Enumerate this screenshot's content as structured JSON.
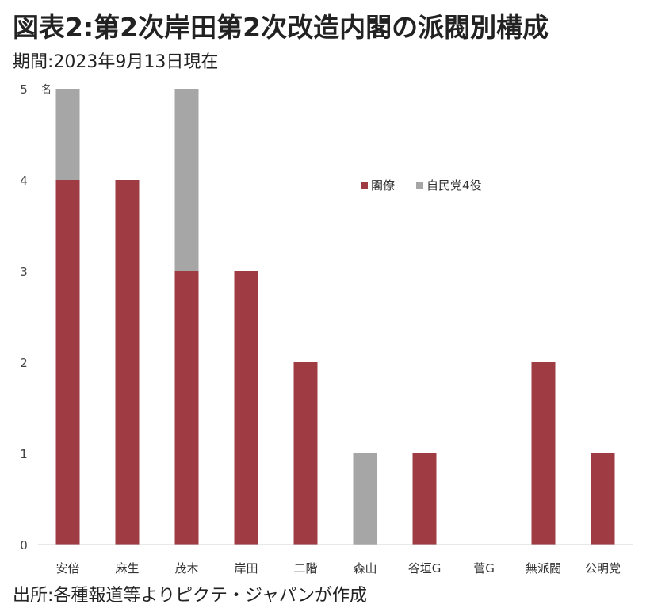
{
  "title": "図表2:第2次岸田第2次改造内閣の派閥別構成",
  "subtitle": "期間:2023年9月13日現在",
  "source": "出所:各種報道等よりピクテ・ジャパンが作成",
  "chart_data": {
    "type": "bar",
    "stacked": true,
    "categories": [
      "安倍",
      "麻生",
      "茂木",
      "岸田",
      "二階",
      "森山",
      "谷垣G",
      "菅G",
      "無派閥",
      "公明党"
    ],
    "series": [
      {
        "name": "閣僚",
        "values": [
          4,
          4,
          3,
          3,
          2,
          0,
          1,
          0,
          2,
          1
        ],
        "color": "#9e3b43"
      },
      {
        "name": "自民党4役",
        "values": [
          1,
          0,
          2,
          0,
          0,
          1,
          0,
          0,
          0,
          0
        ],
        "color": "#a6a6a6"
      }
    ],
    "ylabel": "名",
    "ylim": [
      0,
      5
    ],
    "yticks": [
      "0",
      "1",
      "2",
      "3",
      "4",
      "5"
    ],
    "grid": false,
    "legend_position": "upper-center"
  }
}
